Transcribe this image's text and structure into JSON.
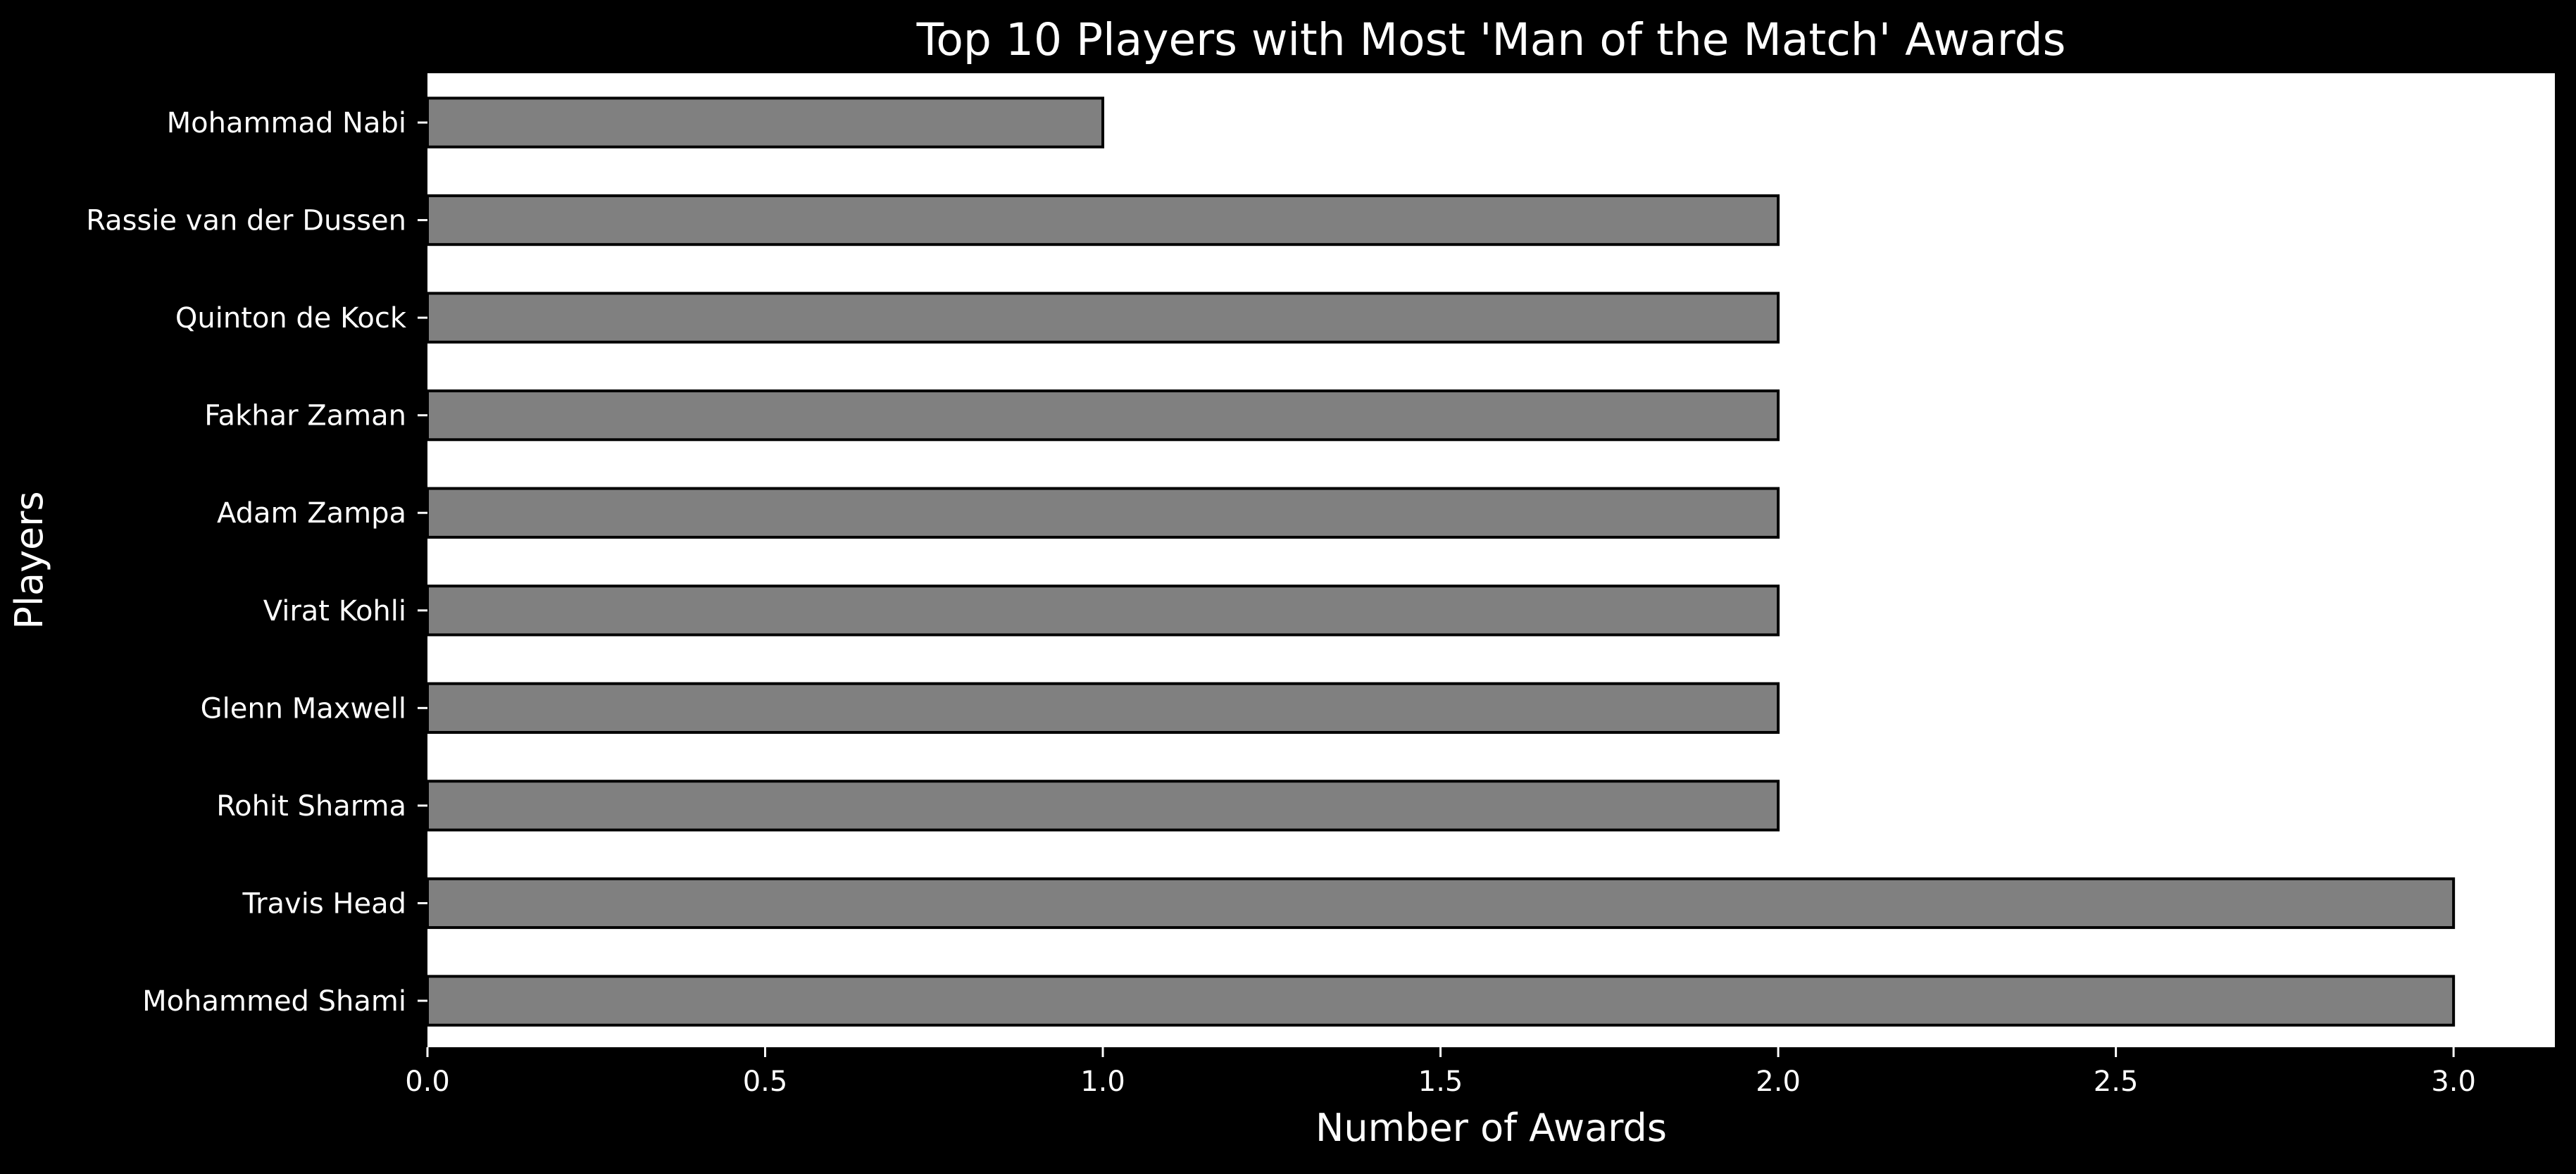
{
  "colors": {
    "background": "#000000",
    "plot_background": "#ffffff",
    "bar_fill": "#808080",
    "bar_edge": "#000000",
    "text": "#ffffff",
    "tick": "#ffffff"
  },
  "chart_data": {
    "type": "bar",
    "orientation": "horizontal",
    "title": "Top 10 Players with Most 'Man of the Match' Awards",
    "xlabel": "Number of Awards",
    "ylabel": "Players",
    "categories": [
      "Mohammed Shami",
      "Travis Head",
      "Rohit Sharma",
      "Glenn Maxwell",
      "Virat Kohli",
      "Adam Zampa",
      "Fakhar Zaman",
      "Quinton de Kock",
      "Rassie van der Dussen",
      "Mohammad Nabi"
    ],
    "values": [
      3,
      3,
      2,
      2,
      2,
      2,
      2,
      2,
      2,
      1
    ],
    "x_ticks": [
      0.0,
      0.5,
      1.0,
      1.5,
      2.0,
      2.5,
      3.0
    ],
    "x_tick_labels": [
      "0.0",
      "0.5",
      "1.0",
      "1.5",
      "2.0",
      "2.5",
      "3.0"
    ],
    "xlim": [
      0,
      3.15
    ],
    "grid": false,
    "legend": "none"
  }
}
